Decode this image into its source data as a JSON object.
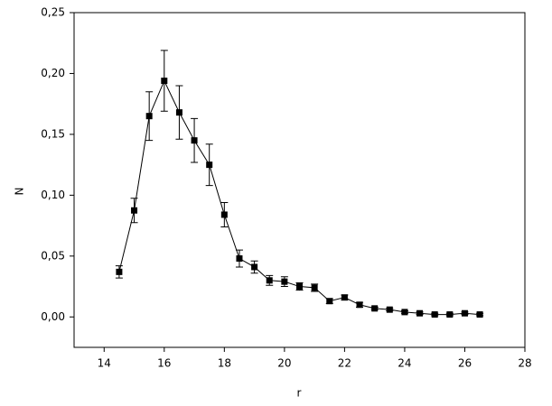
{
  "chart_data": {
    "type": "errorbar-line",
    "x_label": "r",
    "y_label": "N",
    "color": "#000000",
    "x": [
      14.5,
      15,
      15.5,
      16,
      16.5,
      17,
      17.5,
      18,
      18.5,
      19,
      19.5,
      20,
      20.5,
      21,
      21.5,
      22,
      22.5,
      23,
      23.5,
      24,
      24.5,
      25,
      25.5,
      26,
      26.5
    ],
    "values": [
      0.037,
      0.0875,
      0.165,
      0.194,
      0.168,
      0.145,
      0.125,
      0.084,
      0.048,
      0.041,
      0.03,
      0.029,
      0.025,
      0.024,
      0.013,
      0.016,
      0.01,
      0.007,
      0.006,
      0.004,
      0.003,
      0.002,
      0.002,
      0.003,
      0.002
    ],
    "errors": [
      0.005,
      0.01,
      0.02,
      0.025,
      0.022,
      0.018,
      0.017,
      0.01,
      0.007,
      0.005,
      0.004,
      0.004,
      0.003,
      0.003,
      0.002,
      0.002,
      0.002,
      0.001,
      0.001,
      0.001,
      0.001,
      0.001,
      0.001,
      0.001,
      0.001
    ],
    "xlim": [
      13,
      28
    ],
    "xticks": [
      14,
      16,
      18,
      20,
      22,
      24,
      26,
      28
    ],
    "ylim": [
      -0.025,
      0.25
    ],
    "yticks": [
      {
        "value": 0,
        "label": "0,00"
      },
      {
        "value": 0.05,
        "label": "0,05"
      },
      {
        "value": 0.1,
        "label": "0,10"
      },
      {
        "value": 0.15,
        "label": "0,15"
      },
      {
        "value": 0.2,
        "label": "0,20"
      },
      {
        "value": 0.25,
        "label": "0,25"
      }
    ]
  }
}
